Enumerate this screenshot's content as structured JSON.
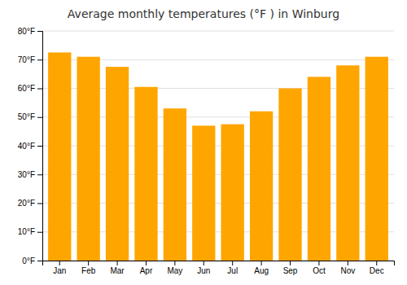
{
  "chart_data": {
    "type": "bar",
    "title": "Average monthly temperatures (°F ) in Winburg",
    "categories": [
      "Jan",
      "Feb",
      "Mar",
      "Apr",
      "May",
      "Jun",
      "Jul",
      "Aug",
      "Sep",
      "Oct",
      "Nov",
      "Dec"
    ],
    "values": [
      72.5,
      71.0,
      67.5,
      60.5,
      53.0,
      47.0,
      47.5,
      52.0,
      60.0,
      64.0,
      68.0,
      71.0
    ],
    "color": "#FFA500",
    "ylim": [
      0,
      80
    ],
    "yticks": [
      {
        "value": 0,
        "label": "0°F"
      },
      {
        "value": 10,
        "label": "10°F"
      },
      {
        "value": 20,
        "label": "20°F"
      },
      {
        "value": 30,
        "label": "30°F"
      },
      {
        "value": 40,
        "label": "40°F"
      },
      {
        "value": 50,
        "label": "50°F"
      },
      {
        "value": 60,
        "label": "60°F"
      },
      {
        "value": 70,
        "label": "70°F"
      },
      {
        "value": 80,
        "label": "80°F"
      }
    ],
    "grid": true
  }
}
